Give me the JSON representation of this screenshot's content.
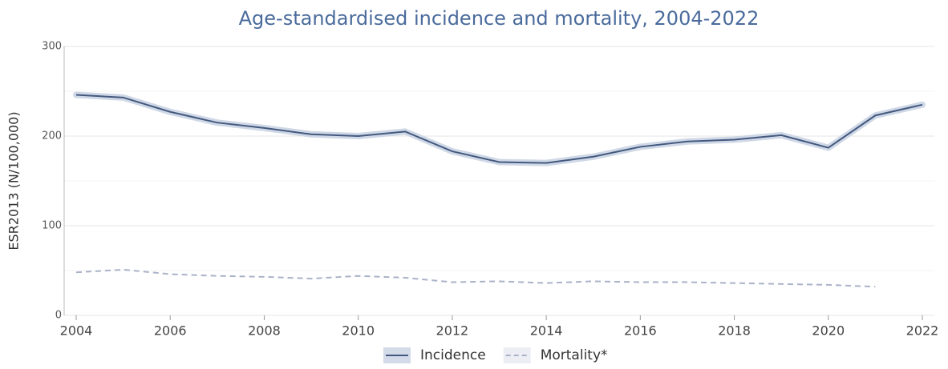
{
  "chart_data": {
    "type": "line",
    "title": "Age-standardised incidence and mortality, 2004-2022",
    "y_label": "ESR2013 (N/100,000)",
    "x": [
      2004,
      2005,
      2006,
      2007,
      2008,
      2009,
      2010,
      2011,
      2012,
      2013,
      2014,
      2015,
      2016,
      2017,
      2018,
      2019,
      2020,
      2021,
      2022
    ],
    "series": [
      {
        "name": "Incidence",
        "color": "#44597f",
        "style": "solid",
        "band": true,
        "values": [
          246,
          243,
          227,
          215,
          209,
          202,
          200,
          205,
          183,
          171,
          170,
          177,
          188,
          194,
          196,
          201,
          187,
          223,
          235
        ]
      },
      {
        "name": "Mortality*",
        "color": "#aab2c8",
        "style": "dashed",
        "band": false,
        "values": [
          48,
          51,
          46,
          44,
          43,
          41,
          44,
          42,
          37,
          38,
          36,
          38,
          37,
          37,
          36,
          35,
          34,
          32,
          null
        ]
      }
    ],
    "xlim": [
      2004,
      2022
    ],
    "xticks": [
      2004,
      2006,
      2008,
      2010,
      2012,
      2014,
      2016,
      2018,
      2020,
      2022
    ],
    "ylim": [
      0,
      300
    ],
    "yticks": [
      0,
      100,
      200,
      300
    ],
    "minor_yticks": [
      50,
      150,
      250
    ],
    "grid": true,
    "legend": "bottom"
  }
}
